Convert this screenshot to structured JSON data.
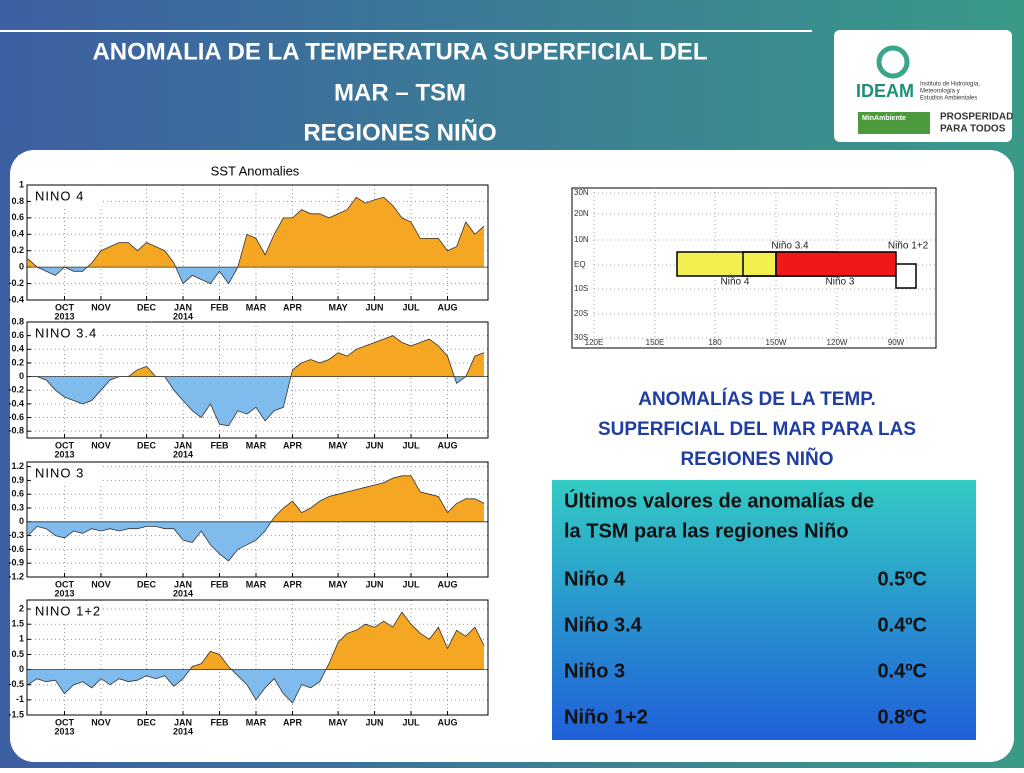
{
  "header": {
    "title_lines": [
      "ANOMALIA DE LA TEMPERATURA SUPERFICIAL DEL",
      "MAR – TSM",
      "REGIONES NIÑO"
    ]
  },
  "logo": {
    "name": "IDEAM",
    "institute_lines": [
      "Instituto de Hidrología,",
      "Meteorología y",
      "Estudios Ambientales"
    ],
    "ministry": "MinAmbiente",
    "slogan_lines": [
      "PROSPERIDAD",
      "PARA TODOS"
    ]
  },
  "figure_title": "SST Anomalies",
  "chart_data": [
    {
      "type": "area",
      "label": "NINO 4",
      "color": "#f5a623",
      "negative_color": "#80bbee",
      "grid": true,
      "categories": [
        null,
        null,
        null,
        null,
        "OCT",
        null,
        null,
        null,
        "NOV",
        null,
        null,
        null,
        null,
        "DEC",
        null,
        null,
        null,
        "JAN",
        null,
        null,
        null,
        "FEB",
        null,
        null,
        null,
        "MAR",
        null,
        null,
        null,
        "APR",
        null,
        null,
        null,
        null,
        "MAY",
        null,
        null,
        null,
        "JUN",
        null,
        null,
        null,
        "JUL",
        null,
        null,
        null,
        "AUG",
        null,
        null,
        null,
        null
      ],
      "year_labels": [
        null,
        null,
        null,
        null,
        "2013",
        null,
        null,
        null,
        null,
        null,
        null,
        null,
        null,
        null,
        null,
        null,
        null,
        "2014",
        null,
        null,
        null,
        null,
        null,
        null,
        null,
        null,
        null,
        null,
        null,
        null,
        null,
        null,
        null,
        null,
        null,
        null,
        null,
        null,
        null,
        null,
        null,
        null,
        null,
        null,
        null,
        null,
        null,
        null,
        null,
        null,
        null
      ],
      "values": [
        0.1,
        0.0,
        -0.05,
        -0.1,
        0.0,
        -0.05,
        -0.05,
        0.05,
        0.2,
        0.25,
        0.3,
        0.3,
        0.2,
        0.3,
        0.25,
        0.2,
        0.05,
        -0.2,
        -0.1,
        -0.15,
        -0.2,
        -0.05,
        -0.2,
        0.0,
        0.4,
        0.35,
        0.15,
        0.4,
        0.6,
        0.6,
        0.7,
        0.65,
        0.65,
        0.6,
        0.65,
        0.7,
        0.85,
        0.78,
        0.82,
        0.85,
        0.75,
        0.6,
        0.55,
        0.35,
        0.35,
        0.35,
        0.2,
        0.25,
        0.55,
        0.4,
        0.5
      ],
      "ylim": [
        -0.4,
        1
      ],
      "yticks": [
        -0.4,
        -0.2,
        0,
        0.2,
        0.4,
        0.6,
        0.8,
        1
      ]
    },
    {
      "type": "area",
      "label": "NINO 3.4",
      "color": "#f5a623",
      "negative_color": "#80bbee",
      "grid": true,
      "categories": [
        null,
        null,
        null,
        null,
        "OCT",
        null,
        null,
        null,
        "NOV",
        null,
        null,
        null,
        null,
        "DEC",
        null,
        null,
        null,
        "JAN",
        null,
        null,
        null,
        "FEB",
        null,
        null,
        null,
        "MAR",
        null,
        null,
        null,
        "APR",
        null,
        null,
        null,
        null,
        "MAY",
        null,
        null,
        null,
        "JUN",
        null,
        null,
        null,
        "JUL",
        null,
        null,
        null,
        "AUG",
        null,
        null,
        null,
        null
      ],
      "year_labels": [
        null,
        null,
        null,
        null,
        "2013",
        null,
        null,
        null,
        null,
        null,
        null,
        null,
        null,
        null,
        null,
        null,
        null,
        "2014",
        null,
        null,
        null,
        null,
        null,
        null,
        null,
        null,
        null,
        null,
        null,
        null,
        null,
        null,
        null,
        null,
        null,
        null,
        null,
        null,
        null,
        null,
        null,
        null,
        null,
        null,
        null,
        null,
        null,
        null,
        null,
        null,
        null
      ],
      "values": [
        0,
        0,
        -0.05,
        -0.2,
        -0.3,
        -0.35,
        -0.4,
        -0.35,
        -0.2,
        -0.05,
        0,
        0,
        0.1,
        0.15,
        0,
        0,
        -0.2,
        -0.35,
        -0.5,
        -0.6,
        -0.4,
        -0.7,
        -0.72,
        -0.5,
        -0.55,
        -0.45,
        -0.65,
        -0.5,
        -0.45,
        0.1,
        0.2,
        0.25,
        0.2,
        0.25,
        0.35,
        0.3,
        0.4,
        0.45,
        0.5,
        0.55,
        0.6,
        0.5,
        0.45,
        0.5,
        0.55,
        0.45,
        0.3,
        -0.1,
        0,
        0.3,
        0.35
      ],
      "ylim": [
        -0.9,
        0.8
      ],
      "yticks": [
        -0.8,
        -0.6,
        -0.4,
        -0.2,
        0,
        0.2,
        0.4,
        0.6,
        0.8
      ]
    },
    {
      "type": "area",
      "label": "NINO 3",
      "color": "#f5a623",
      "negative_color": "#80bbee",
      "grid": true,
      "categories": [
        null,
        null,
        null,
        null,
        "OCT",
        null,
        null,
        null,
        "NOV",
        null,
        null,
        null,
        null,
        "DEC",
        null,
        null,
        null,
        "JAN",
        null,
        null,
        null,
        "FEB",
        null,
        null,
        null,
        "MAR",
        null,
        null,
        null,
        "APR",
        null,
        null,
        null,
        null,
        "MAY",
        null,
        null,
        null,
        "JUN",
        null,
        null,
        null,
        "JUL",
        null,
        null,
        null,
        "AUG",
        null,
        null,
        null,
        null
      ],
      "year_labels": [
        null,
        null,
        null,
        null,
        "2013",
        null,
        null,
        null,
        null,
        null,
        null,
        null,
        null,
        null,
        null,
        null,
        null,
        "2014",
        null,
        null,
        null,
        null,
        null,
        null,
        null,
        null,
        null,
        null,
        null,
        null,
        null,
        null,
        null,
        null,
        null,
        null,
        null,
        null,
        null,
        null,
        null,
        null,
        null,
        null,
        null,
        null,
        null,
        null,
        null,
        null,
        null
      ],
      "values": [
        -0.3,
        -0.1,
        -0.15,
        -0.3,
        -0.35,
        -0.2,
        -0.25,
        -0.15,
        -0.2,
        -0.15,
        -0.2,
        -0.15,
        -0.15,
        -0.1,
        -0.1,
        -0.15,
        -0.15,
        -0.4,
        -0.45,
        -0.2,
        -0.5,
        -0.7,
        -0.85,
        -0.6,
        -0.5,
        -0.4,
        -0.2,
        0.1,
        0.3,
        0.45,
        0.2,
        0.3,
        0.45,
        0.55,
        0.6,
        0.65,
        0.7,
        0.75,
        0.8,
        0.85,
        0.95,
        1.0,
        1.0,
        0.65,
        0.6,
        0.55,
        0.2,
        0.4,
        0.5,
        0.5,
        0.4
      ],
      "ylim": [
        -1.2,
        1.3
      ],
      "yticks": [
        -1.2,
        -0.9,
        -0.6,
        -0.3,
        0,
        0.3,
        0.6,
        0.9,
        1.2
      ]
    },
    {
      "type": "area",
      "label": "NINO 1+2",
      "color": "#f5a623",
      "negative_color": "#80bbee",
      "grid": true,
      "categories": [
        null,
        null,
        null,
        null,
        "OCT",
        null,
        null,
        null,
        "NOV",
        null,
        null,
        null,
        null,
        "DEC",
        null,
        null,
        null,
        "JAN",
        null,
        null,
        null,
        "FEB",
        null,
        null,
        null,
        "MAR",
        null,
        null,
        null,
        "APR",
        null,
        null,
        null,
        null,
        "MAY",
        null,
        null,
        null,
        "JUN",
        null,
        null,
        null,
        "JUL",
        null,
        null,
        null,
        "AUG",
        null,
        null,
        null,
        null
      ],
      "year_labels": [
        null,
        null,
        null,
        null,
        "2013",
        null,
        null,
        null,
        null,
        null,
        null,
        null,
        null,
        null,
        null,
        null,
        null,
        "2014",
        null,
        null,
        null,
        null,
        null,
        null,
        null,
        null,
        null,
        null,
        null,
        null,
        null,
        null,
        null,
        null,
        null,
        null,
        null,
        null,
        null,
        null,
        null,
        null,
        null,
        null,
        null,
        null,
        null,
        null,
        null,
        null,
        null
      ],
      "values": [
        -0.5,
        -0.3,
        -0.4,
        -0.35,
        -0.8,
        -0.5,
        -0.4,
        -0.6,
        -0.3,
        -0.5,
        -0.3,
        -0.4,
        -0.35,
        -0.2,
        -0.3,
        -0.2,
        -0.55,
        -0.3,
        0.1,
        0.2,
        0.6,
        0.5,
        0.1,
        -0.2,
        -0.5,
        -1.0,
        -0.6,
        -0.3,
        -0.8,
        -1.1,
        -0.5,
        -0.6,
        -0.4,
        0.2,
        0.9,
        1.2,
        1.3,
        1.5,
        1.4,
        1.6,
        1.4,
        1.9,
        1.5,
        1.2,
        1.0,
        1.4,
        0.7,
        1.3,
        1.1,
        1.4,
        0.8
      ],
      "ylim": [
        -1.5,
        2.3
      ],
      "yticks": [
        -1.5,
        -1,
        -0.5,
        0,
        0.5,
        1,
        1.5,
        2
      ]
    }
  ],
  "map": {
    "lat_labels": [
      "30N",
      "20N",
      "10N",
      "EQ",
      "10S",
      "20S",
      "30S"
    ],
    "lon_labels": [
      "120E",
      "150E",
      "180",
      "150W",
      "120W",
      "90W"
    ],
    "regions": [
      {
        "label": "Niño 4",
        "color": "#f2f050"
      },
      {
        "label": "Niño 3.4",
        "color": "none"
      },
      {
        "label": "Niño 3",
        "color": "#f01818"
      },
      {
        "label": "Niño 1+2",
        "color": "#ffffff"
      }
    ]
  },
  "summary": {
    "heading_lines": [
      "ANOMALÍAS DE LA TEMP.",
      "SUPERFICIAL DEL MAR PARA LAS",
      "REGIONES NIÑO"
    ],
    "caption_lines": [
      "Últimos valores de anomalías de",
      "la TSM para las regiones Niño"
    ],
    "rows": [
      [
        "Niño 4",
        "0.5ºC"
      ],
      [
        "Niño 3.4",
        "0.4ºC"
      ],
      [
        "Niño 3",
        "0.4ºC"
      ],
      [
        "Niño 1+2",
        "0.8ºC"
      ]
    ]
  }
}
